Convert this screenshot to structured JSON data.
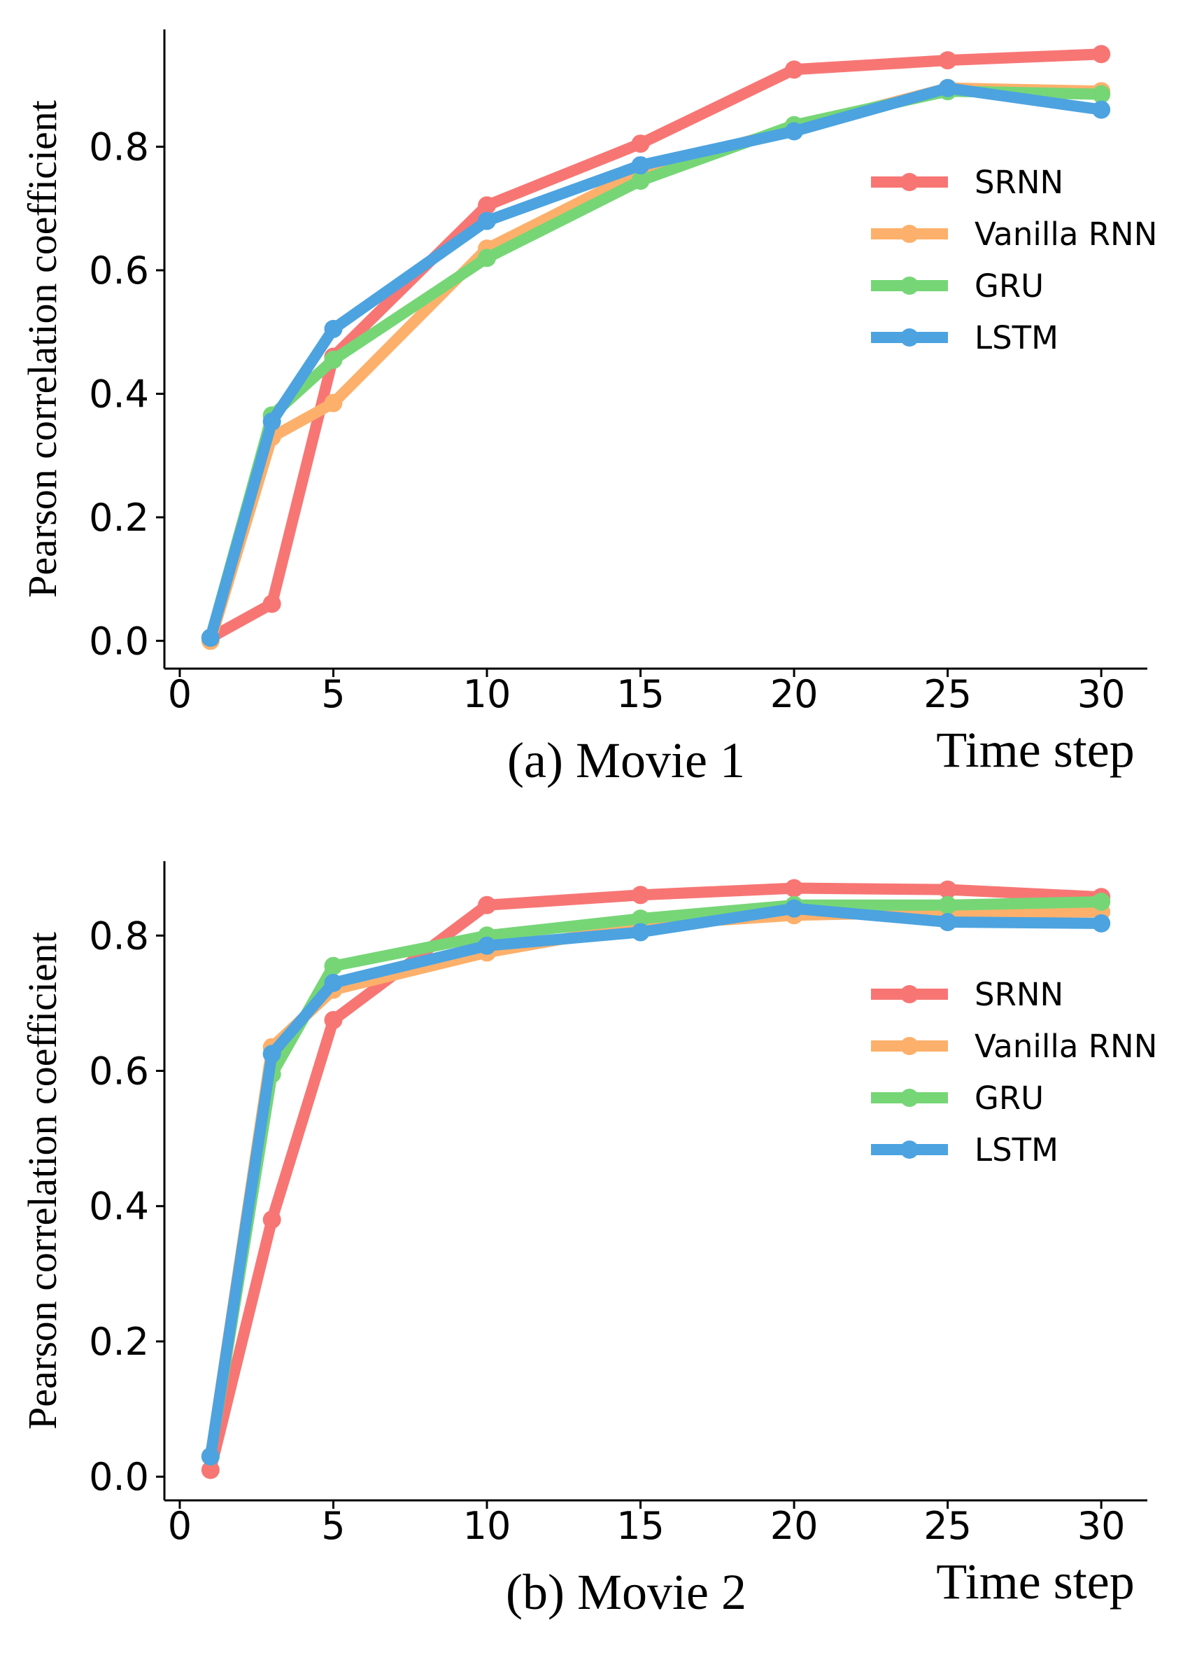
{
  "chart_data": [
    {
      "type": "line",
      "caption": "(a) Movie 1",
      "xlabel": "Time step",
      "ylabel": "Pearson correlation coefficient",
      "x": [
        1,
        3,
        5,
        10,
        15,
        20,
        25,
        30
      ],
      "xticks": [
        0,
        5,
        10,
        15,
        20,
        25,
        30
      ],
      "yticks": [
        0.0,
        0.2,
        0.4,
        0.6,
        0.8
      ],
      "xlim": [
        -0.5,
        31.5
      ],
      "ylim": [
        -0.045,
        0.99
      ],
      "legend_position": "right",
      "series": [
        {
          "name": "SRNN",
          "color": "#f77674",
          "values": [
            0.005,
            0.06,
            0.46,
            0.705,
            0.805,
            0.925,
            0.94,
            0.95
          ]
        },
        {
          "name": "Vanilla RNN",
          "color": "#fdb06b",
          "values": [
            0.0,
            0.33,
            0.385,
            0.635,
            0.76,
            0.83,
            0.895,
            0.89
          ]
        },
        {
          "name": "GRU",
          "color": "#76d676",
          "values": [
            0.005,
            0.365,
            0.455,
            0.62,
            0.745,
            0.835,
            0.89,
            0.885
          ]
        },
        {
          "name": "LSTM",
          "color": "#4ca3e0",
          "values": [
            0.005,
            0.355,
            0.505,
            0.68,
            0.77,
            0.825,
            0.895,
            0.86
          ]
        }
      ]
    },
    {
      "type": "line",
      "caption": "(b) Movie 2",
      "xlabel": "Time step",
      "ylabel": "Pearson correlation coefficient",
      "x": [
        1,
        3,
        5,
        10,
        15,
        20,
        25,
        30
      ],
      "xticks": [
        0,
        5,
        10,
        15,
        20,
        25,
        30
      ],
      "yticks": [
        0.0,
        0.2,
        0.4,
        0.6,
        0.8
      ],
      "xlim": [
        -0.5,
        31.5
      ],
      "ylim": [
        -0.035,
        0.91
      ],
      "legend_position": "right",
      "series": [
        {
          "name": "SRNN",
          "color": "#f77674",
          "values": [
            0.01,
            0.38,
            0.675,
            0.845,
            0.86,
            0.87,
            0.868,
            0.857
          ]
        },
        {
          "name": "Vanilla RNN",
          "color": "#fdb06b",
          "values": [
            0.03,
            0.635,
            0.72,
            0.775,
            0.815,
            0.83,
            0.835,
            0.835
          ]
        },
        {
          "name": "GRU",
          "color": "#76d676",
          "values": [
            0.03,
            0.595,
            0.755,
            0.8,
            0.825,
            0.845,
            0.845,
            0.85
          ]
        },
        {
          "name": "LSTM",
          "color": "#4ca3e0",
          "values": [
            0.03,
            0.625,
            0.73,
            0.785,
            0.805,
            0.84,
            0.82,
            0.818
          ]
        }
      ]
    }
  ]
}
